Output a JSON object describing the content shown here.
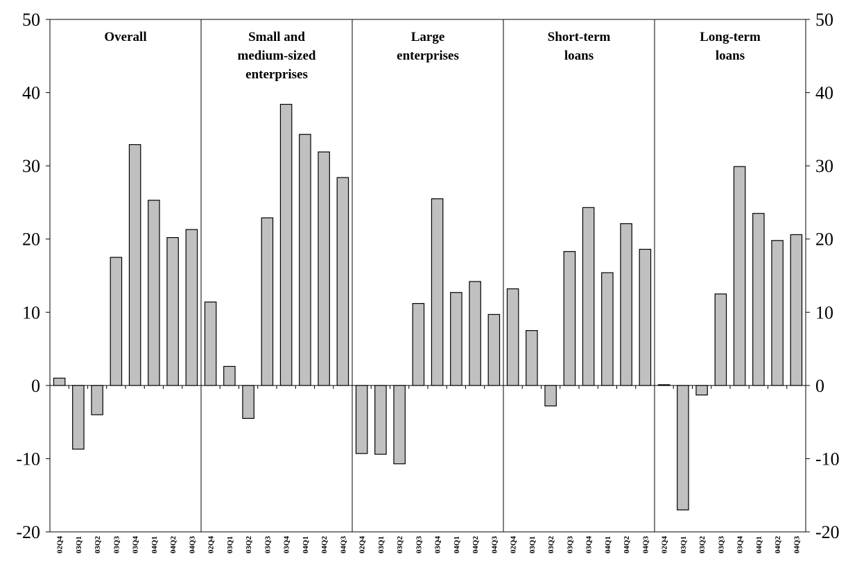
{
  "chart_data": {
    "type": "bar",
    "title": "",
    "xlabel": "",
    "ylabel": "",
    "ylim": [
      -20,
      50
    ],
    "yticks": [
      -20,
      -10,
      0,
      10,
      20,
      30,
      40,
      50
    ],
    "ytick_labels": [
      "-20",
      "-10",
      "0",
      "10",
      "20",
      "30",
      "40",
      "50"
    ],
    "secondary_y_axis": "mirrored on right",
    "grid": false,
    "legend": "none",
    "bar_color": "#c0c0c0",
    "bar_edge_color": "#000000",
    "categories": [
      "02Q4",
      "03Q1",
      "03Q2",
      "03Q3",
      "03Q4",
      "04Q1",
      "04Q2",
      "04Q3"
    ],
    "panels": [
      {
        "title_lines": [
          "Overall"
        ],
        "values": [
          1.0,
          -8.7,
          -4.0,
          17.5,
          32.9,
          25.3,
          20.2,
          21.3
        ]
      },
      {
        "title_lines": [
          "Small and",
          "medium-sized",
          "enterprises"
        ],
        "values": [
          11.4,
          2.6,
          -4.5,
          22.9,
          38.4,
          34.3,
          31.9,
          28.4
        ]
      },
      {
        "title_lines": [
          "Large",
          "enterprises"
        ],
        "values": [
          -9.3,
          -9.4,
          -10.7,
          11.2,
          25.5,
          12.7,
          14.2,
          9.7
        ]
      },
      {
        "title_lines": [
          "Short-term",
          "loans"
        ],
        "values": [
          13.2,
          7.5,
          -2.8,
          18.3,
          24.3,
          15.4,
          22.1,
          18.6
        ]
      },
      {
        "title_lines": [
          "Long-term",
          "loans"
        ],
        "values": [
          0.1,
          -17.0,
          -1.3,
          12.5,
          29.9,
          23.5,
          19.8,
          20.6
        ]
      }
    ]
  }
}
